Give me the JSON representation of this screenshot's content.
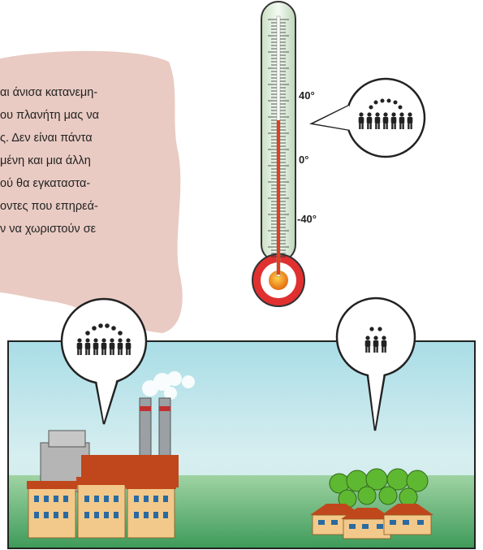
{
  "text": {
    "lines": [
      "αι άνισα κατανεμη-",
      "ου πλανήτη μας να",
      "ς. Δεν είναι πάντα",
      "μένη και μια άλλη",
      "ού θα εγκαταστα-",
      "οντες που επηρεά-",
      "ν να χωριστούν σε"
    ]
  },
  "thermometer": {
    "labels": [
      "40°",
      "0°",
      "-40°"
    ]
  }
}
